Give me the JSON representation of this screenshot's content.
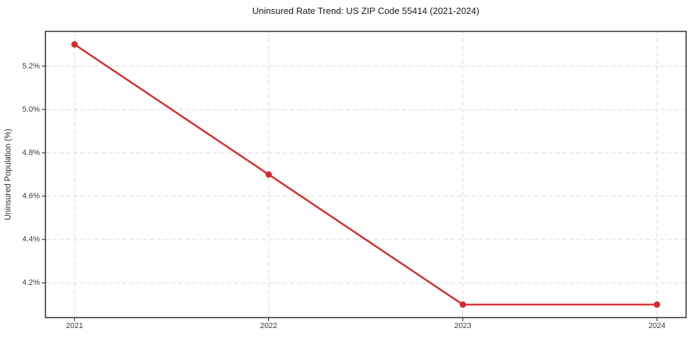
{
  "chart_data": {
    "type": "line",
    "title": "Uninsured Rate Trend: US ZIP Code 55414 (2021-2024)",
    "xlabel": "",
    "ylabel": "Uninsured Population (%)",
    "x": [
      2021,
      2022,
      2023,
      2024
    ],
    "x_tick_labels": [
      "2021",
      "2022",
      "2023",
      "2024"
    ],
    "series": [
      {
        "name": "uninsured-rate",
        "values": [
          5.3,
          4.7,
          4.1,
          4.1
        ]
      }
    ],
    "y_ticks": [
      4.2,
      4.4,
      4.6,
      4.8,
      5.0,
      5.2
    ],
    "y_tick_labels": [
      "4.2%",
      "4.4%",
      "4.6%",
      "4.8%",
      "5.0%",
      "5.2%"
    ],
    "xlim": [
      2020.85,
      2024.15
    ],
    "ylim": [
      4.04,
      5.36
    ],
    "grid": true,
    "grid_style": "dashed",
    "legend_position": "none",
    "marker": "circle",
    "colors": {
      "line": "#d62b2f",
      "marker": "#d62b2f",
      "grid": "#d9d9d9",
      "spine": "#1a1a1a",
      "tick": "#262626",
      "text": "#3a3a3a",
      "background": "#ffffff"
    }
  }
}
